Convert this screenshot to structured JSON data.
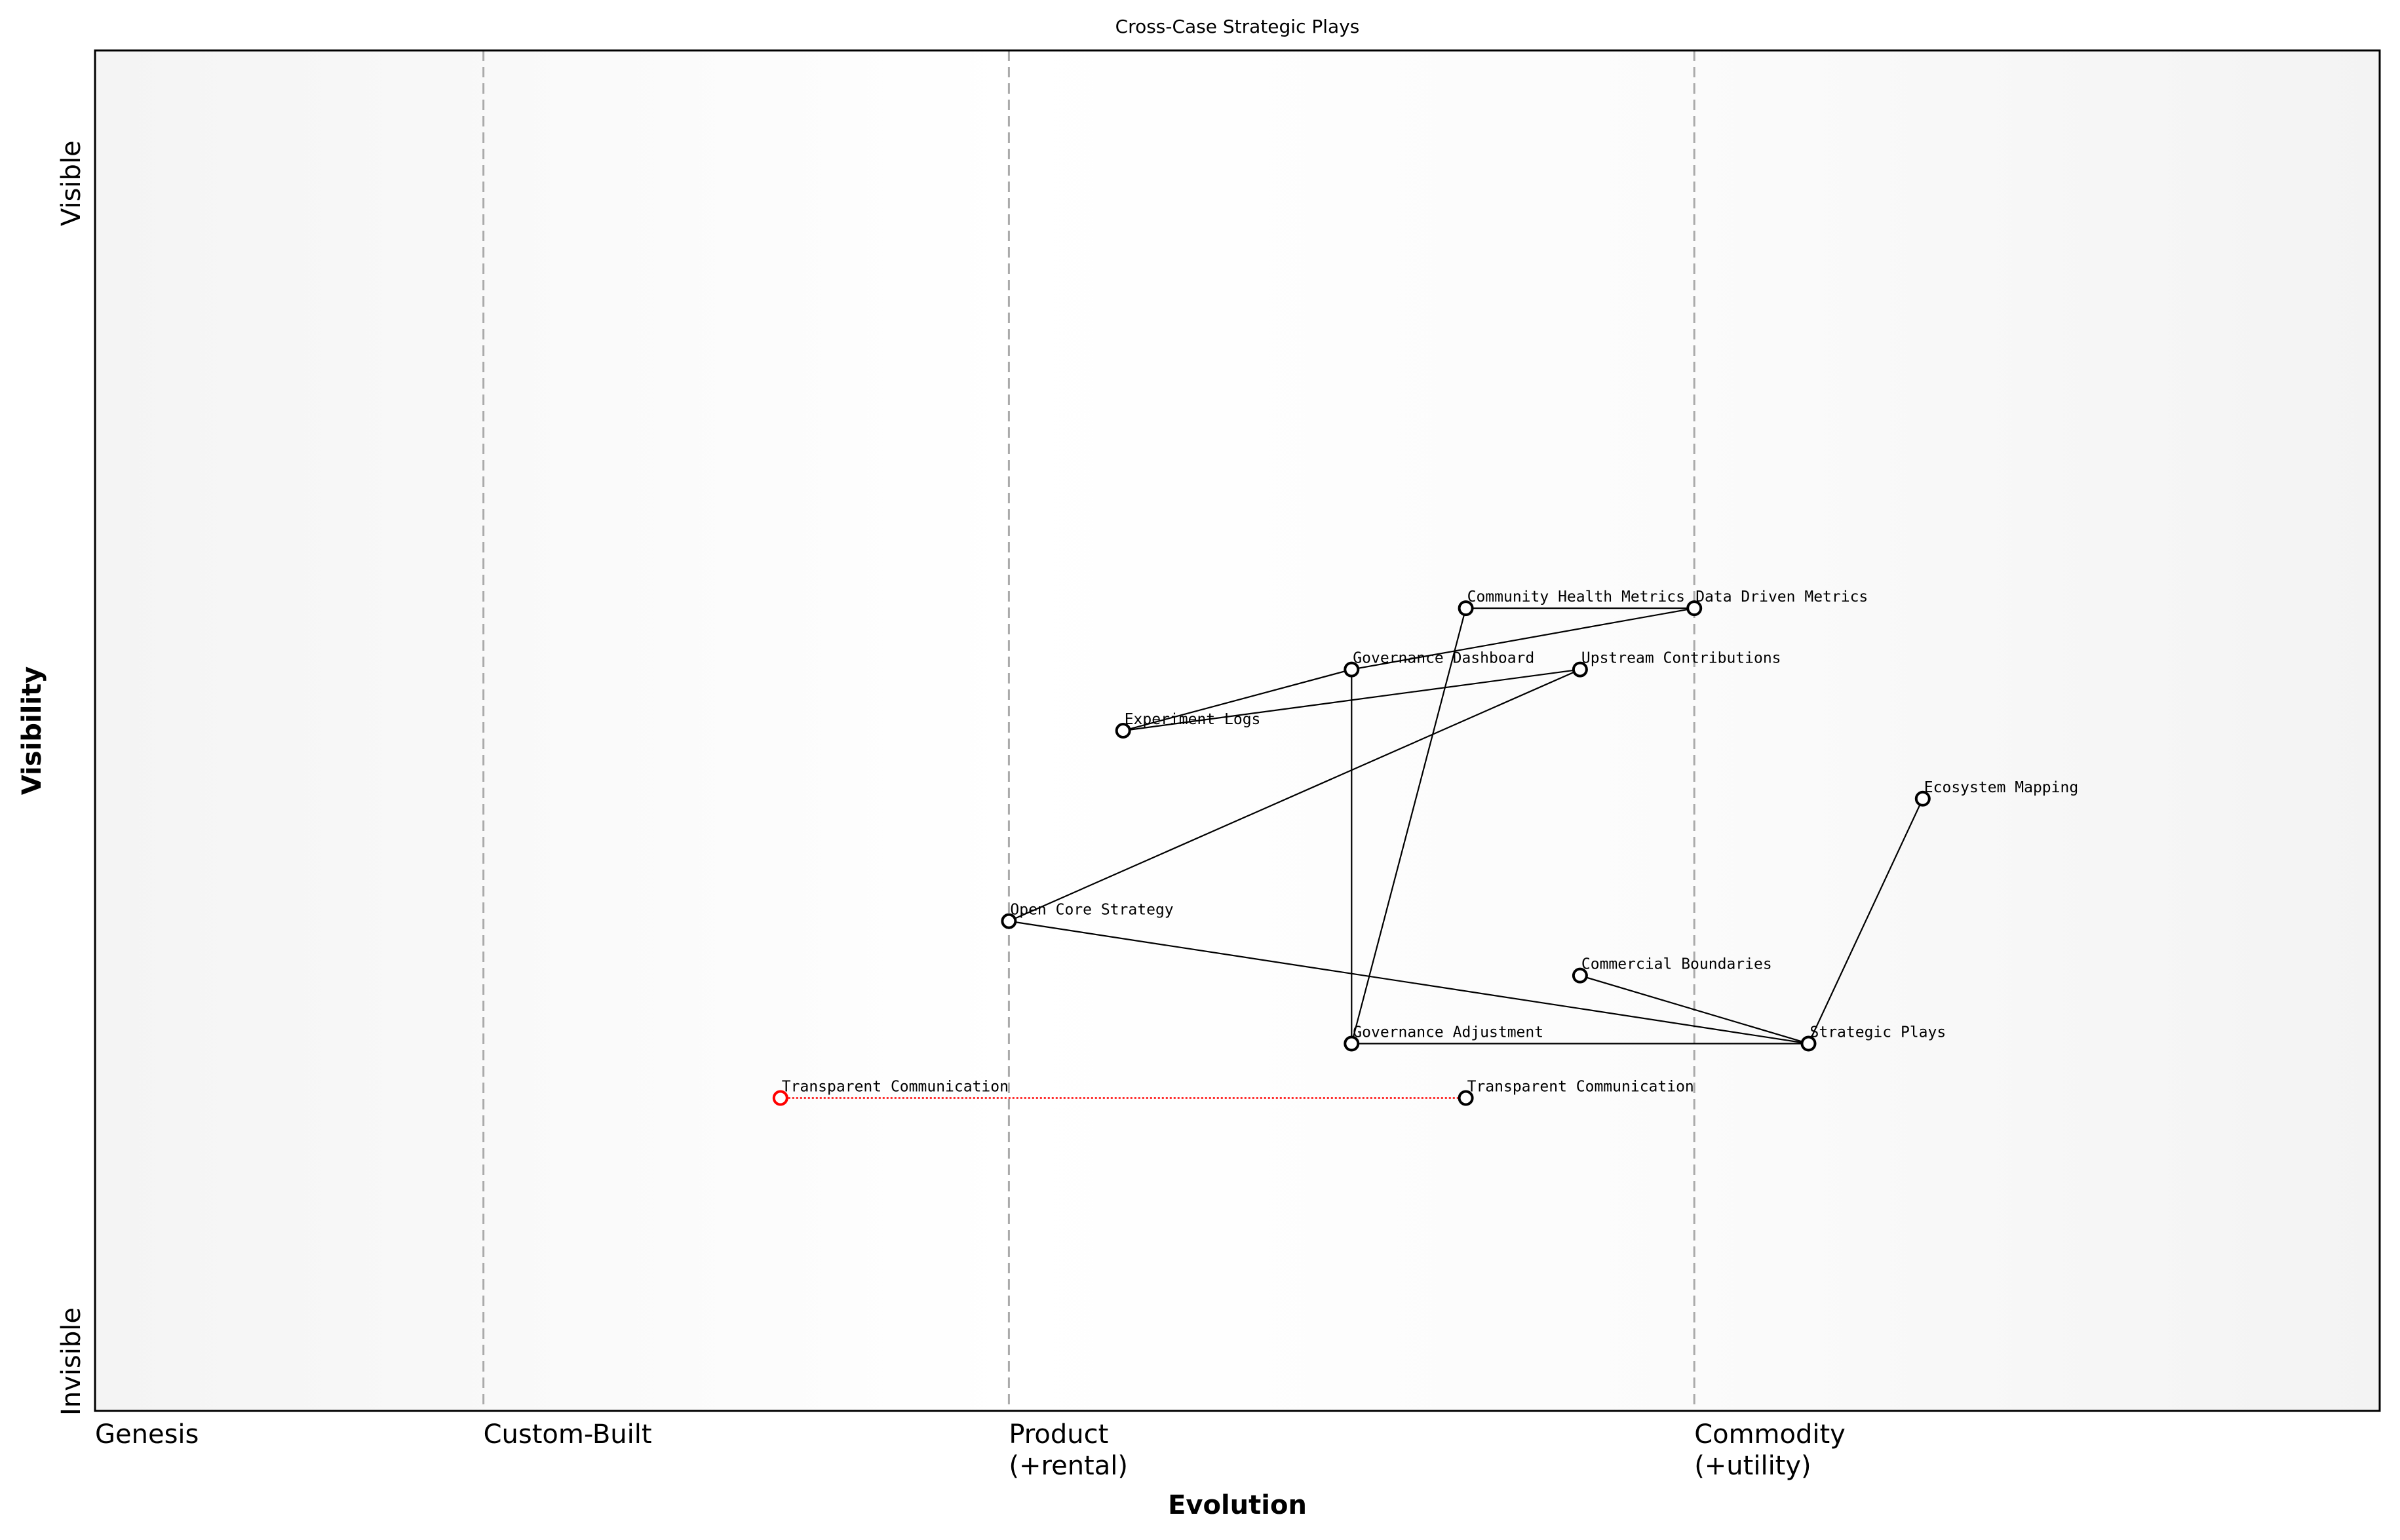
{
  "title": "Cross-Case Strategic Plays",
  "x_axis_label": "Evolution",
  "y_axis_label": "Visibility",
  "y_top_label": "Visible",
  "y_bottom_label": "Invisible",
  "stages": [
    {
      "label": "Genesis",
      "at": 0.0
    },
    {
      "label": "Custom-Built",
      "at": 0.17
    },
    {
      "label": "Product",
      "label2": "(+rental)",
      "at": 0.4
    },
    {
      "label": "Commodity",
      "label2": "(+utility)",
      "at": 0.7
    }
  ],
  "components": [
    {
      "id": "chm",
      "name": "Community Health Metrics",
      "evolution": 0.6,
      "visibility": 0.59
    },
    {
      "id": "ddm",
      "name": "Data Driven Metrics",
      "evolution": 0.7,
      "visibility": 0.59
    },
    {
      "id": "gd",
      "name": "Governance Dashboard",
      "evolution": 0.55,
      "visibility": 0.545
    },
    {
      "id": "uc",
      "name": "Upstream Contributions",
      "evolution": 0.65,
      "visibility": 0.545
    },
    {
      "id": "el",
      "name": "Experiment Logs",
      "evolution": 0.45,
      "visibility": 0.5
    },
    {
      "id": "em",
      "name": "Ecosystem Mapping",
      "evolution": 0.8,
      "visibility": 0.45
    },
    {
      "id": "ocs",
      "name": "Open Core Strategy",
      "evolution": 0.4,
      "visibility": 0.36
    },
    {
      "id": "cb",
      "name": "Commercial Boundaries",
      "evolution": 0.65,
      "visibility": 0.32
    },
    {
      "id": "ga",
      "name": "Governance Adjustment",
      "evolution": 0.55,
      "visibility": 0.27
    },
    {
      "id": "sp",
      "name": "Strategic Plays",
      "evolution": 0.75,
      "visibility": 0.27
    },
    {
      "id": "tc",
      "name": "Transparent Communication",
      "evolution": 0.6,
      "visibility": 0.23
    },
    {
      "id": "tc_old",
      "name": "Transparent Communication",
      "evolution": 0.3,
      "visibility": 0.23,
      "color": "#ff0000"
    }
  ],
  "links": [
    [
      "chm",
      "ddm"
    ],
    [
      "ddm",
      "gd"
    ],
    [
      "gd",
      "el"
    ],
    [
      "el",
      "uc"
    ],
    [
      "uc",
      "ocs"
    ],
    [
      "ocs",
      "sp"
    ],
    [
      "cb",
      "sp"
    ],
    [
      "ga",
      "sp"
    ],
    [
      "gd",
      "ga"
    ],
    [
      "chm",
      "ga"
    ],
    [
      "em",
      "sp"
    ]
  ],
  "evolve_links": [
    [
      "tc_old",
      "tc"
    ]
  ],
  "colors": {
    "evolve": "#ff0000",
    "stage_line": "#aaaaaa",
    "edge_bg": "#f4f4f4",
    "mid_bg": "#ffffff"
  }
}
